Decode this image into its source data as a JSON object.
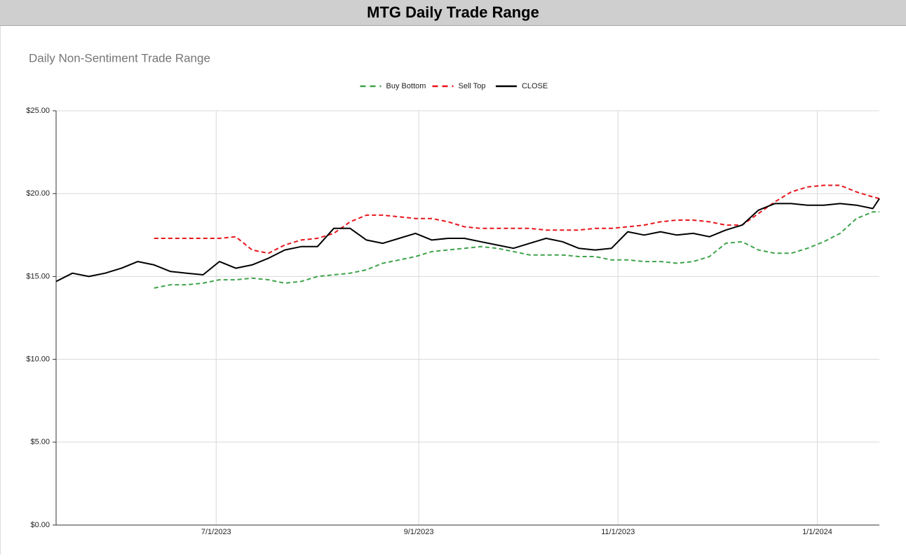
{
  "chart_data": {
    "type": "line",
    "page_title": "MTG Daily Trade Range",
    "title": "Daily Non-Sentiment Trade Range",
    "x": [
      "2023-05-13",
      "2023-05-18",
      "2023-05-23",
      "2023-05-28",
      "2023-06-02",
      "2023-06-07",
      "2023-06-12",
      "2023-06-17",
      "2023-06-22",
      "2023-06-27",
      "2023-07-02",
      "2023-07-07",
      "2023-07-12",
      "2023-07-17",
      "2023-07-22",
      "2023-07-27",
      "2023-08-01",
      "2023-08-06",
      "2023-08-11",
      "2023-08-16",
      "2023-08-21",
      "2023-08-26",
      "2023-08-31",
      "2023-09-05",
      "2023-09-10",
      "2023-09-15",
      "2023-09-20",
      "2023-09-25",
      "2023-09-30",
      "2023-10-05",
      "2023-10-10",
      "2023-10-15",
      "2023-10-20",
      "2023-10-25",
      "2023-10-30",
      "2023-11-04",
      "2023-11-09",
      "2023-11-14",
      "2023-11-19",
      "2023-11-24",
      "2023-11-29",
      "2023-12-04",
      "2023-12-09",
      "2023-12-14",
      "2023-12-19",
      "2023-12-24",
      "2023-12-29",
      "2024-01-03",
      "2024-01-08",
      "2024-01-13",
      "2024-01-18",
      "2024-01-20"
    ],
    "series": [
      {
        "name": "Buy Bottom",
        "color": "#3ea34a",
        "dashed": true,
        "values": [
          null,
          null,
          null,
          null,
          null,
          null,
          14.3,
          14.5,
          14.5,
          14.6,
          14.8,
          14.8,
          14.9,
          14.8,
          14.6,
          14.7,
          15.0,
          15.1,
          15.2,
          15.4,
          15.8,
          16.0,
          16.2,
          16.5,
          16.6,
          16.7,
          16.8,
          16.7,
          16.5,
          16.3,
          16.3,
          16.3,
          16.2,
          16.2,
          16.0,
          16.0,
          15.9,
          15.9,
          15.8,
          15.9,
          16.2,
          17.0,
          17.1,
          16.6,
          16.4,
          16.4,
          16.7,
          17.1,
          17.6,
          18.5,
          18.9,
          18.9
        ]
      },
      {
        "name": "Sell Top",
        "color": "#e8141b",
        "dashed": true,
        "values": [
          null,
          null,
          null,
          null,
          null,
          null,
          17.3,
          17.3,
          17.3,
          17.3,
          17.3,
          17.4,
          16.6,
          16.4,
          16.9,
          17.2,
          17.3,
          17.6,
          18.3,
          18.7,
          18.7,
          18.6,
          18.5,
          18.5,
          18.3,
          18.0,
          17.9,
          17.9,
          17.9,
          17.9,
          17.8,
          17.8,
          17.8,
          17.9,
          17.9,
          18.0,
          18.1,
          18.3,
          18.4,
          18.4,
          18.3,
          18.1,
          18.1,
          18.8,
          19.5,
          20.1,
          20.4,
          20.5,
          20.5,
          20.1,
          19.8,
          19.7
        ]
      },
      {
        "name": "CLOSE",
        "color": "#000000",
        "dashed": false,
        "values": [
          14.7,
          15.2,
          15.0,
          15.2,
          15.5,
          15.9,
          15.7,
          15.3,
          15.2,
          15.1,
          15.9,
          15.5,
          15.7,
          16.1,
          16.6,
          16.8,
          16.8,
          17.9,
          17.9,
          17.2,
          17.0,
          17.3,
          17.6,
          17.2,
          17.3,
          17.3,
          17.1,
          16.9,
          16.7,
          17.0,
          17.3,
          17.1,
          16.7,
          16.6,
          16.7,
          17.7,
          17.5,
          17.7,
          17.5,
          17.6,
          17.4,
          17.8,
          18.1,
          19.0,
          19.4,
          19.4,
          19.3,
          19.3,
          19.4,
          19.3,
          19.1,
          19.7
        ]
      }
    ],
    "xlim": [
      "2023-05-13",
      "2024-01-20"
    ],
    "xticks": [
      {
        "value": "2023-07-01",
        "label": "7/1/2023"
      },
      {
        "value": "2023-09-01",
        "label": "9/1/2023"
      },
      {
        "value": "2023-11-01",
        "label": "11/1/2023"
      },
      {
        "value": "2024-01-01",
        "label": "1/1/2024"
      }
    ],
    "ylim": [
      0,
      25
    ],
    "yticks": [
      {
        "value": 0,
        "label": "$0.00"
      },
      {
        "value": 5,
        "label": "$5.00"
      },
      {
        "value": 10,
        "label": "$10.00"
      },
      {
        "value": 15,
        "label": "$15.00"
      },
      {
        "value": 20,
        "label": "$20.00"
      },
      {
        "value": 25,
        "label": "$25.00"
      }
    ],
    "grid": true,
    "legend": "top"
  }
}
